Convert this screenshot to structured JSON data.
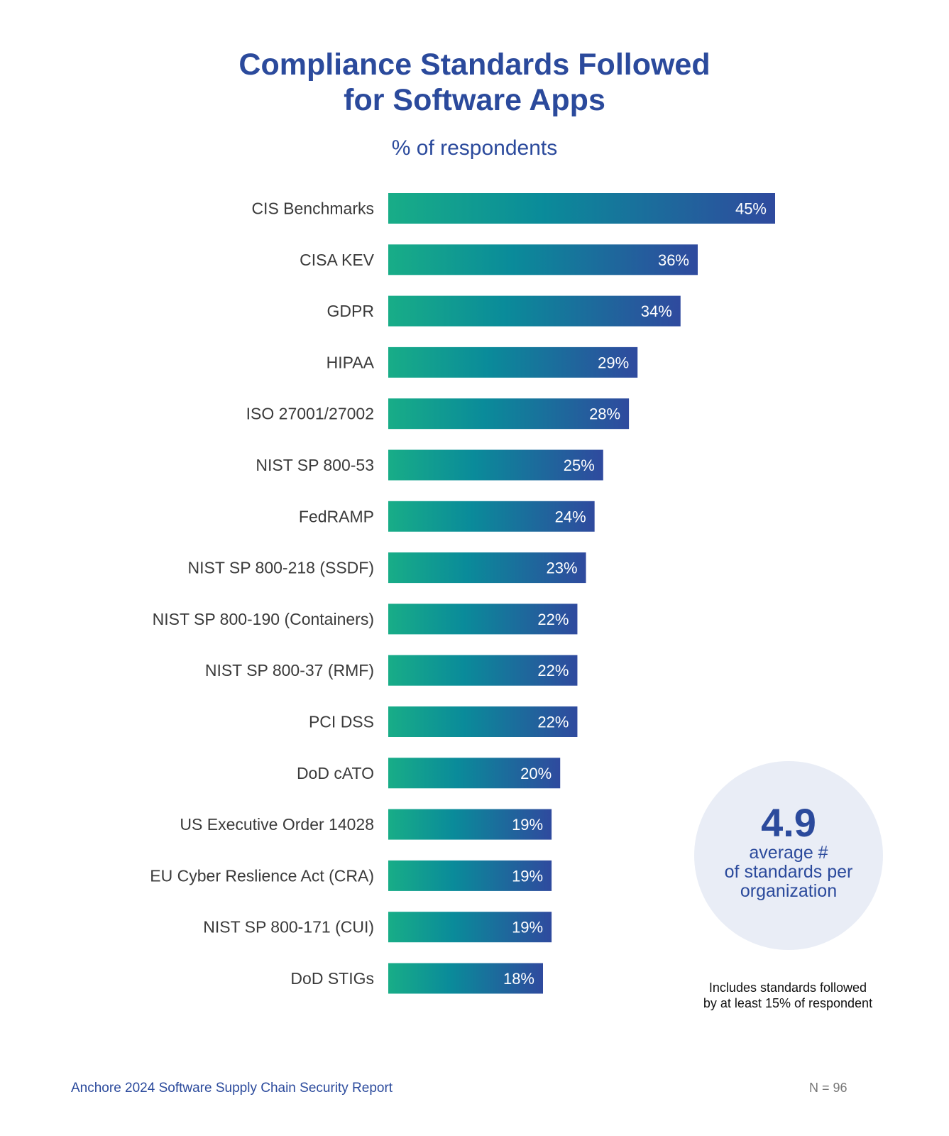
{
  "chart_data": {
    "type": "bar",
    "orientation": "horizontal",
    "title": [
      "Compliance Standards Followed",
      "for Software Apps"
    ],
    "subtitle": "% of respondents",
    "categories": [
      "CIS Benchmarks",
      "CISA KEV",
      "GDPR",
      "HIPAA",
      "ISO 27001/27002",
      "NIST SP 800-53",
      "FedRAMP",
      "NIST SP 800-218 (SSDF)",
      "NIST SP 800-190 (Containers)",
      "NIST SP 800-37 (RMF)",
      "PCI DSS",
      "DoD cATO",
      "US Executive Order 14028",
      "EU Cyber Reslience Act (CRA)",
      "NIST SP 800-171 (CUI)",
      "DoD STIGs"
    ],
    "values": [
      45,
      36,
      34,
      29,
      28,
      25,
      24,
      23,
      22,
      22,
      22,
      20,
      19,
      19,
      19,
      18
    ],
    "value_labels": [
      "45%",
      "36%",
      "34%",
      "29%",
      "28%",
      "25%",
      "24%",
      "23%",
      "22%",
      "22%",
      "22%",
      "20%",
      "19%",
      "19%",
      "19%",
      "18%"
    ],
    "xlim": [
      0,
      45
    ],
    "grid": false,
    "colors": {
      "gradient_start": "#18ad87",
      "gradient_mid": "#0a8b9a",
      "gradient_end": "#2f4a9e"
    }
  },
  "stat": {
    "value": "4.9",
    "text_lines": [
      "average #",
      "of standards per",
      "organization"
    ]
  },
  "note_lines": [
    "Includes standards followed",
    "by at least 15% of respondent"
  ],
  "footer": {
    "source": "Anchore 2024 Software Supply Chain Security Report",
    "sample": "N = 96"
  },
  "colors": {
    "accent": "#2b4a9c",
    "circle_bg": "#e9edf6"
  }
}
